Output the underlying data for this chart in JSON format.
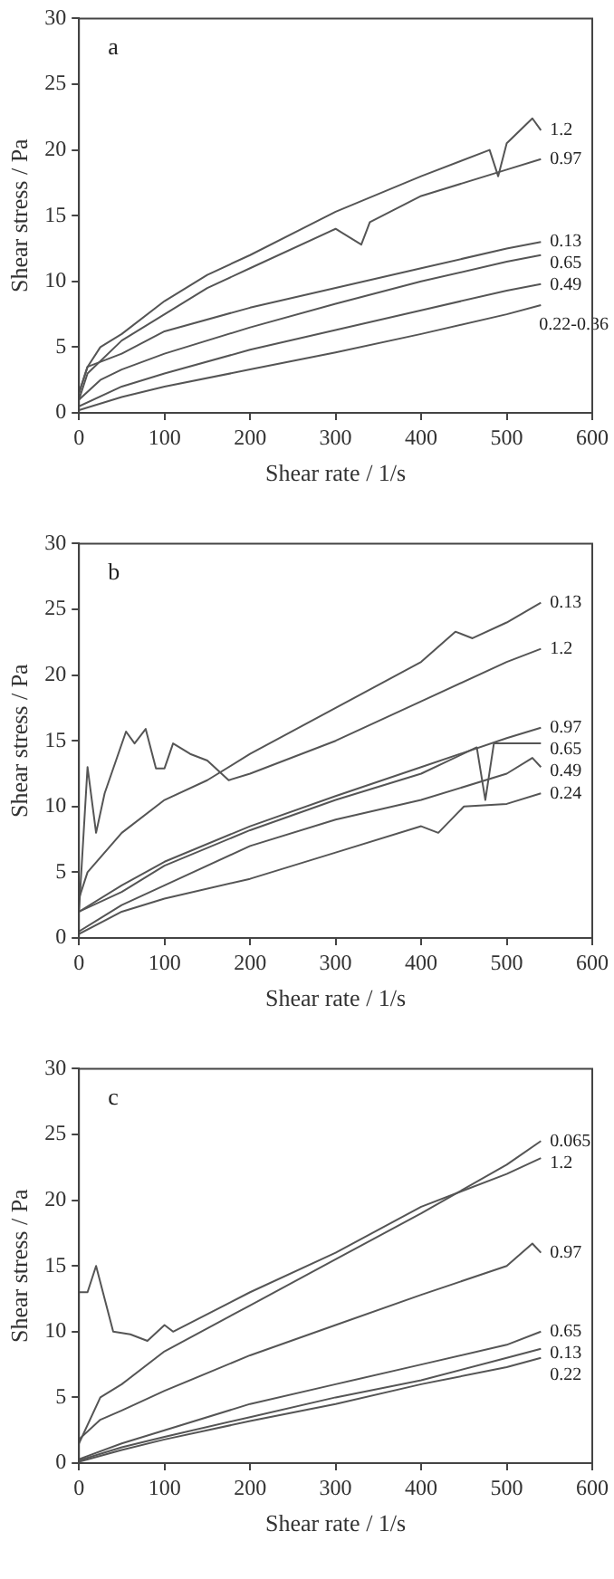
{
  "chart_data": [
    {
      "type": "line",
      "xlabel": "Shear rate / 1/s",
      "ylabel": "Shear stress / Pa",
      "xlim": [
        0,
        600
      ],
      "xticks": [
        0,
        100,
        200,
        300,
        400,
        500,
        600
      ],
      "ylim": [
        0,
        30
      ],
      "yticks": [
        0,
        5,
        10,
        15,
        20,
        25,
        30
      ],
      "grid": false,
      "legend": false,
      "marker": "none",
      "annotations": [
        "a"
      ],
      "series": [
        {
          "name": "1.2",
          "color": "#555555",
          "x": [
            0,
            10,
            25,
            50,
            100,
            150,
            200,
            300,
            400,
            480,
            490,
            500,
            530,
            540
          ],
          "values": [
            1.5,
            3.5,
            5,
            6,
            8.5,
            10.5,
            12,
            15.3,
            18,
            20,
            18,
            20.5,
            22.4,
            21.5
          ]
        },
        {
          "name": "0.97",
          "color": "#555555",
          "x": [
            0,
            10,
            50,
            100,
            150,
            200,
            300,
            330,
            340,
            400,
            500,
            540
          ],
          "values": [
            1,
            3,
            5.5,
            7.5,
            9.5,
            11,
            14,
            12.8,
            14.5,
            16.5,
            18.5,
            19.3
          ]
        },
        {
          "name": "0.13",
          "color": "#555555",
          "x": [
            0,
            10,
            50,
            100,
            200,
            300,
            400,
            500,
            540
          ],
          "values": [
            1.5,
            3.5,
            4.5,
            6.2,
            8,
            9.5,
            11,
            12.5,
            13
          ]
        },
        {
          "name": "0.65",
          "color": "#555555",
          "x": [
            0,
            25,
            50,
            100,
            200,
            300,
            400,
            500,
            540
          ],
          "values": [
            1,
            2.5,
            3.3,
            4.5,
            6.5,
            8.3,
            10,
            11.5,
            12
          ]
        },
        {
          "name": "0.49",
          "color": "#555555",
          "x": [
            0,
            50,
            100,
            200,
            300,
            400,
            500,
            540
          ],
          "values": [
            0.5,
            2,
            3,
            4.8,
            6.3,
            7.8,
            9.3,
            9.8
          ]
        },
        {
          "name": "0.22-0.36",
          "color": "#555555",
          "x": [
            0,
            50,
            100,
            200,
            300,
            400,
            500,
            540
          ],
          "values": [
            0.2,
            1.2,
            2,
            3.3,
            4.6,
            6,
            7.5,
            8.2
          ]
        }
      ]
    },
    {
      "type": "line",
      "xlabel": "Shear rate / 1/s",
      "ylabel": "Shear stress / Pa",
      "xlim": [
        0,
        600
      ],
      "xticks": [
        0,
        100,
        200,
        300,
        400,
        500,
        600
      ],
      "ylim": [
        0,
        30
      ],
      "yticks": [
        0,
        5,
        10,
        15,
        20,
        25,
        30
      ],
      "grid": false,
      "legend": false,
      "marker": "none",
      "annotations": [
        "b"
      ],
      "series": [
        {
          "name": "0.13",
          "color": "#555555",
          "x": [
            0,
            10,
            50,
            100,
            150,
            200,
            300,
            400,
            440,
            460,
            500,
            540
          ],
          "values": [
            3,
            5,
            8,
            10.5,
            12,
            14,
            17.5,
            21,
            23.3,
            22.8,
            24,
            25.5
          ]
        },
        {
          "name": "1.2",
          "color": "#555555",
          "x": [
            0,
            10,
            20,
            30,
            55,
            65,
            78,
            90,
            100,
            110,
            130,
            150,
            175,
            200,
            300,
            400,
            500,
            540
          ],
          "values": [
            2,
            13,
            8,
            11,
            15.7,
            14.8,
            15.9,
            12.9,
            12.9,
            14.8,
            14,
            13.5,
            12,
            12.5,
            15,
            18,
            21,
            22
          ]
        },
        {
          "name": "0.97",
          "color": "#555555",
          "x": [
            0,
            50,
            100,
            200,
            300,
            400,
            500,
            540
          ],
          "values": [
            2,
            4,
            5.8,
            8.5,
            10.8,
            13,
            15.2,
            16
          ]
        },
        {
          "name": "0.65",
          "color": "#555555",
          "x": [
            0,
            50,
            100,
            200,
            300,
            400,
            465,
            475,
            485,
            540
          ],
          "values": [
            2,
            3.5,
            5.5,
            8.2,
            10.5,
            12.5,
            14.5,
            10.5,
            14.8,
            14.8
          ]
        },
        {
          "name": "0.49",
          "color": "#555555",
          "x": [
            0,
            50,
            100,
            200,
            300,
            400,
            500,
            530,
            540
          ],
          "values": [
            0.5,
            2.5,
            4,
            7,
            9,
            10.5,
            12.5,
            13.7,
            13
          ]
        },
        {
          "name": "0.24",
          "color": "#555555",
          "x": [
            0,
            50,
            100,
            200,
            300,
            400,
            420,
            450,
            500,
            540
          ],
          "values": [
            0.3,
            2,
            3,
            4.5,
            6.5,
            8.5,
            8,
            10,
            10.2,
            11
          ]
        }
      ]
    },
    {
      "type": "line",
      "xlabel": "Shear rate / 1/s",
      "ylabel": "Shear stress / Pa",
      "xlim": [
        0,
        600
      ],
      "xticks": [
        0,
        100,
        200,
        300,
        400,
        500,
        600
      ],
      "ylim": [
        0,
        30
      ],
      "yticks": [
        0,
        5,
        10,
        15,
        20,
        25,
        30
      ],
      "grid": false,
      "legend": false,
      "marker": "none",
      "annotations": [
        "c"
      ],
      "series": [
        {
          "name": "0.065",
          "color": "#555555",
          "x": [
            0,
            25,
            50,
            100,
            200,
            300,
            400,
            500,
            540
          ],
          "values": [
            1.5,
            5,
            6,
            8.5,
            12,
            15.5,
            19,
            22.7,
            24.5
          ]
        },
        {
          "name": "1.2",
          "color": "#555555",
          "x": [
            0,
            10,
            20,
            40,
            60,
            80,
            100,
            110,
            200,
            300,
            400,
            500,
            540
          ],
          "values": [
            13,
            13,
            15,
            10,
            9.8,
            9.3,
            10.5,
            10,
            13,
            16,
            19.5,
            22,
            23.2
          ]
        },
        {
          "name": "0.97",
          "color": "#555555",
          "x": [
            0,
            25,
            50,
            100,
            200,
            300,
            400,
            500,
            530,
            540
          ],
          "values": [
            1.8,
            3.3,
            4,
            5.5,
            8.2,
            10.5,
            12.8,
            15,
            16.7,
            16
          ]
        },
        {
          "name": "0.65",
          "color": "#555555",
          "x": [
            0,
            50,
            100,
            200,
            300,
            400,
            500,
            540
          ],
          "values": [
            0.3,
            1.5,
            2.5,
            4.5,
            6,
            7.5,
            9,
            10
          ]
        },
        {
          "name": "0.13",
          "color": "#555555",
          "x": [
            0,
            50,
            100,
            200,
            300,
            400,
            500,
            540
          ],
          "values": [
            0.2,
            1.2,
            2,
            3.5,
            5,
            6.3,
            8,
            8.7
          ]
        },
        {
          "name": "0.22",
          "color": "#555555",
          "x": [
            0,
            50,
            100,
            200,
            300,
            400,
            500,
            540
          ],
          "values": [
            0.1,
            1,
            1.8,
            3.2,
            4.5,
            6,
            7.3,
            8
          ]
        }
      ]
    }
  ]
}
